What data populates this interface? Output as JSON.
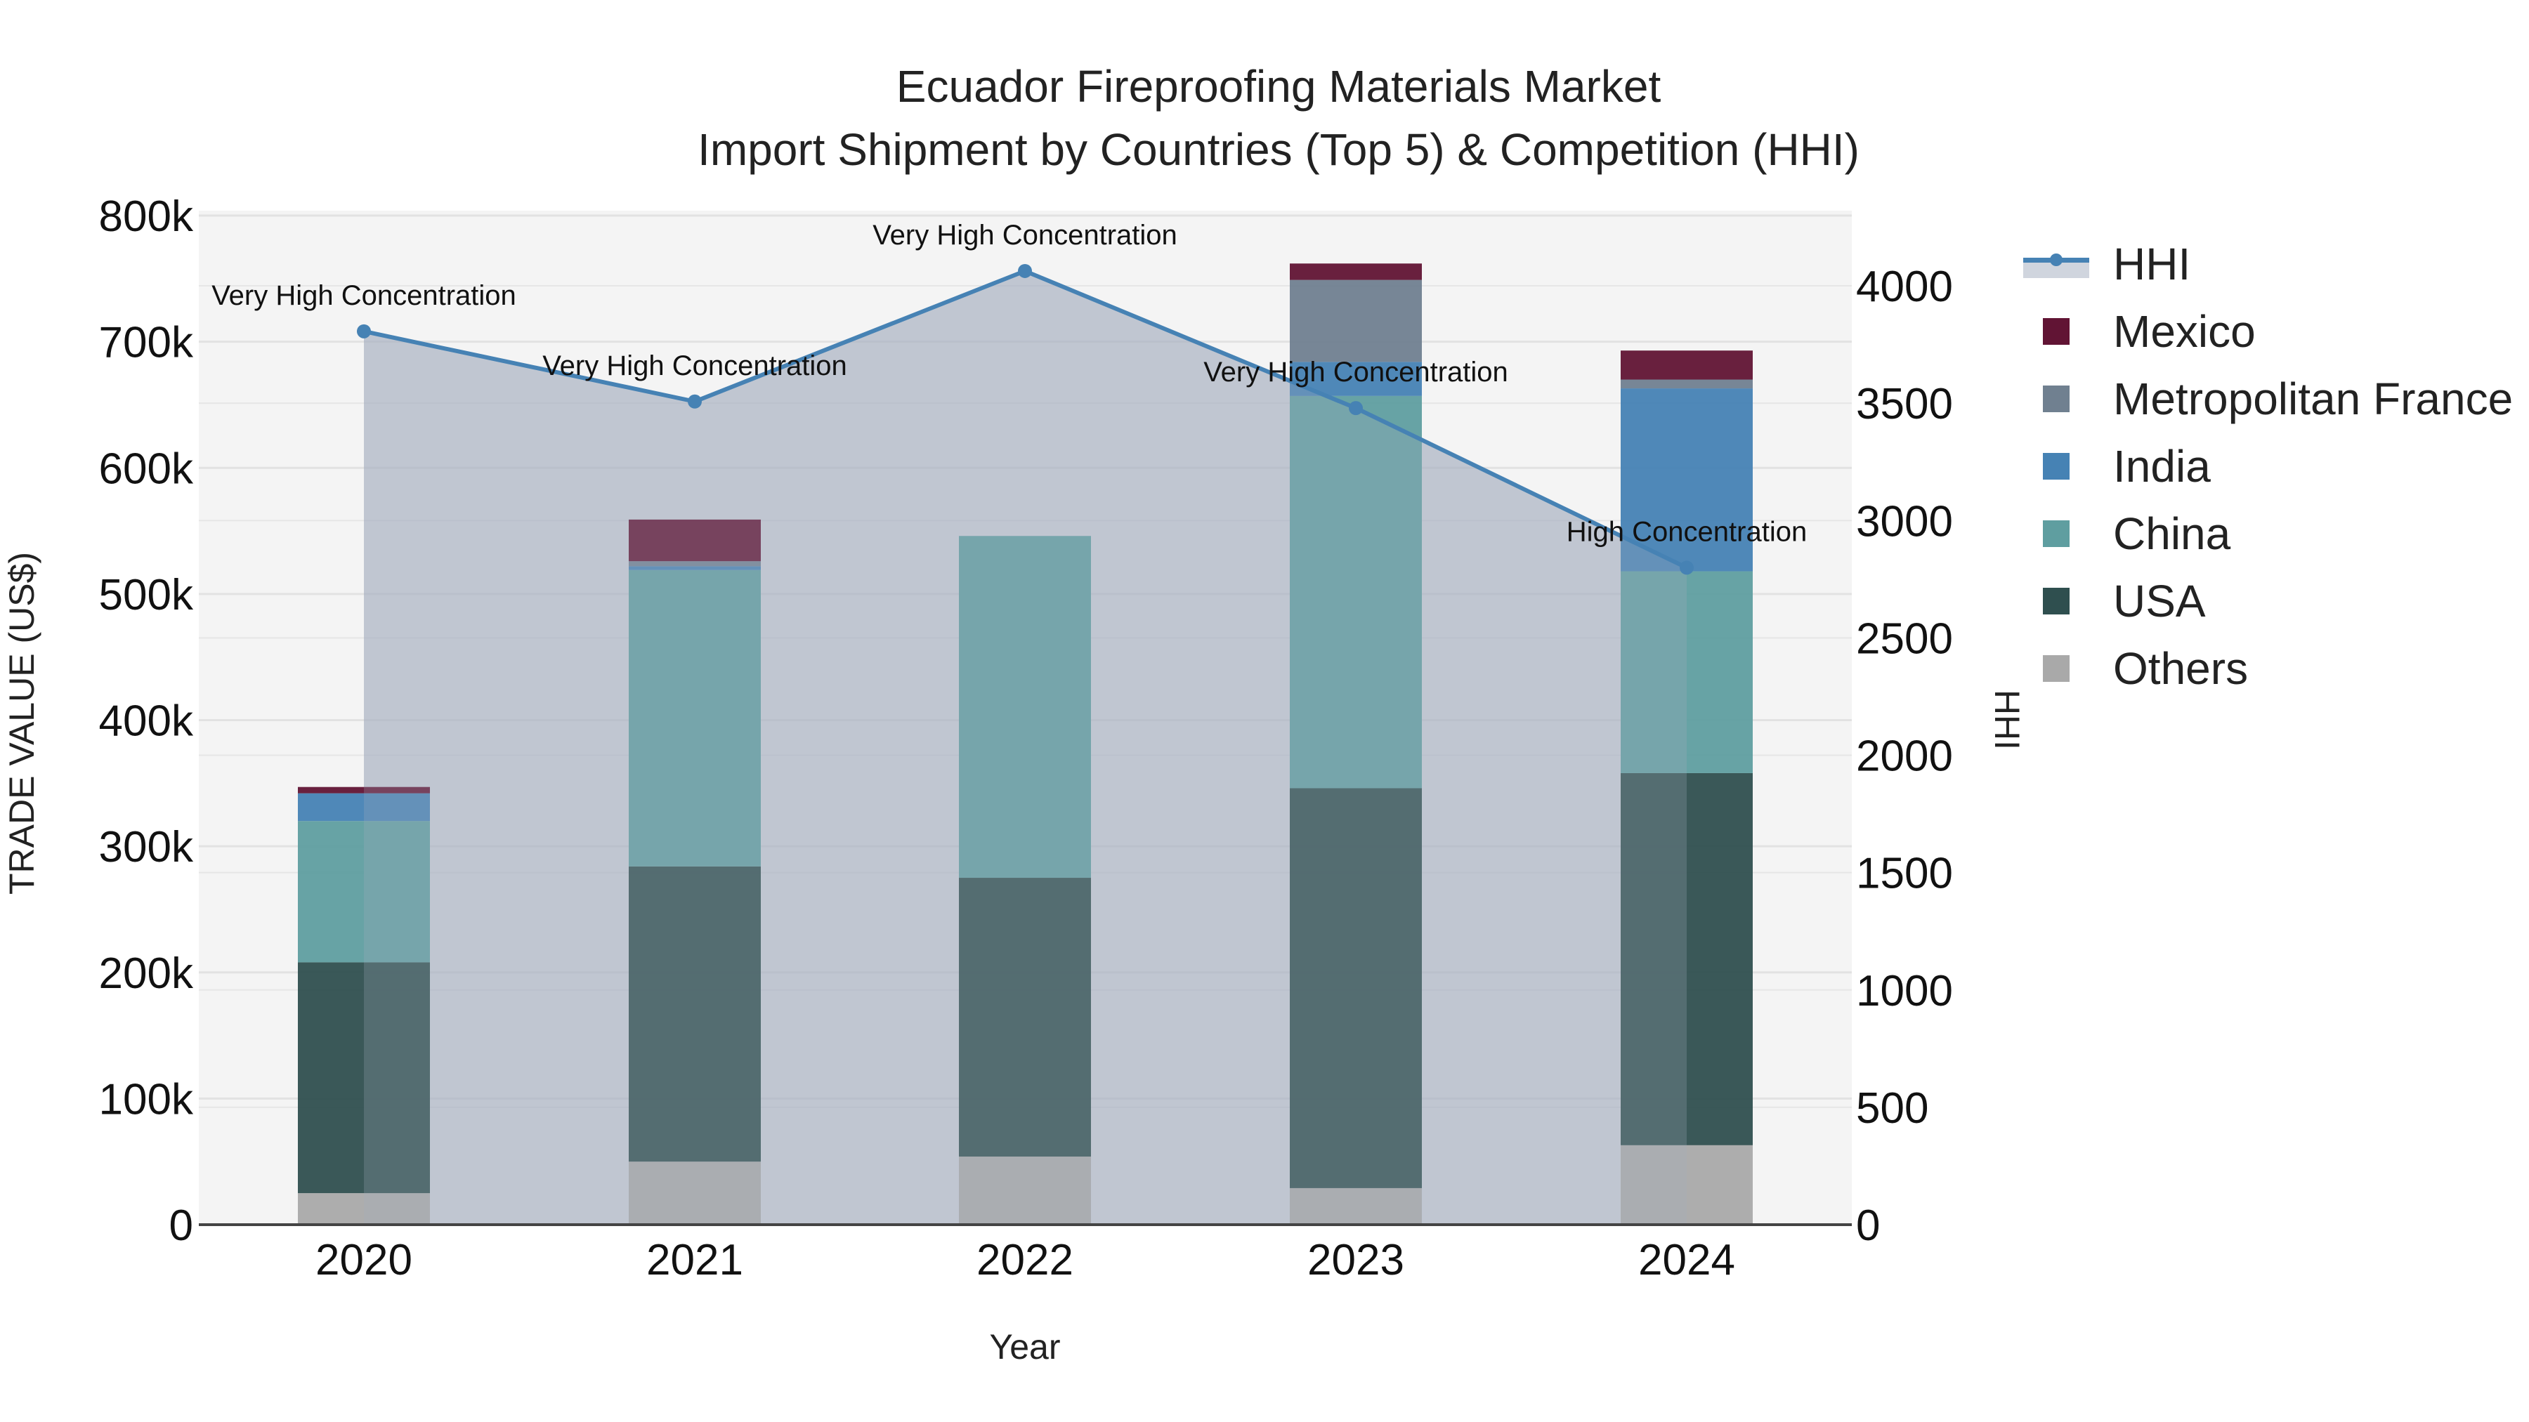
{
  "chart_data": {
    "type": "bar",
    "subtype": "stacked bar with secondary-axis area line",
    "title": "Ecuador Fireproofing Materials Market",
    "subtitle": "Import Shipment by Countries (Top 5) & Competition (HHI)",
    "xlabel": "Year",
    "ylabel": "TRADE VALUE (US$)",
    "y2label": "HHI",
    "categories": [
      "2020",
      "2021",
      "2022",
      "2023",
      "2024"
    ],
    "ylim": [
      0,
      800000
    ],
    "y_ticks": [
      0,
      100000,
      200000,
      300000,
      400000,
      500000,
      600000,
      700000,
      800000
    ],
    "y_tick_labels": [
      "0",
      "100k",
      "200k",
      "300k",
      "400k",
      "500k",
      "600k",
      "700k",
      "800k"
    ],
    "y2lim": [
      0,
      4300
    ],
    "y2_ticks": [
      0,
      500,
      1000,
      1500,
      2000,
      2500,
      3000,
      3500,
      4000
    ],
    "y2_tick_labels": [
      "0",
      "500",
      "1000",
      "1500",
      "2000",
      "2500",
      "3000",
      "3500",
      "4000"
    ],
    "grid": true,
    "legend_position": "right",
    "series": [
      {
        "name": "Others",
        "color": "#a9a9a9",
        "values": [
          25000,
          50000,
          54000,
          29000,
          63000
        ]
      },
      {
        "name": "USA",
        "color": "#2f4f4f",
        "values": [
          183000,
          234000,
          221000,
          317000,
          295000
        ]
      },
      {
        "name": "China",
        "color": "#5f9ea0",
        "values": [
          112000,
          235000,
          271000,
          311000,
          160000
        ]
      },
      {
        "name": "India",
        "color": "#4682b4",
        "values": [
          22000,
          3000,
          0,
          27000,
          145000
        ]
      },
      {
        "name": "Metropolitan France",
        "color": "#708090",
        "values": [
          0,
          4000,
          0,
          65000,
          7000
        ]
      },
      {
        "name": "Mexico",
        "color": "#611434",
        "values": [
          5000,
          33000,
          0,
          13000,
          23000
        ]
      }
    ],
    "line_series": {
      "name": "HHI",
      "axis": "y2",
      "color": "#4682b4",
      "fill": "rgba(162,172,190,0.55)",
      "values": [
        3806,
        3507,
        4063,
        3479,
        2799
      ],
      "annotations": [
        "Very High Concentration",
        "Very High Concentration",
        "Very High Concentration",
        "Very High Concentration",
        "High Concentration"
      ]
    }
  },
  "legend": {
    "items": [
      {
        "label": "HHI",
        "kind": "line",
        "color": "#4682b4"
      },
      {
        "label": "Mexico",
        "kind": "box",
        "color": "#611434"
      },
      {
        "label": "Metropolitan France",
        "kind": "box",
        "color": "#708090"
      },
      {
        "label": "India",
        "kind": "box",
        "color": "#4682b4"
      },
      {
        "label": "China",
        "kind": "box",
        "color": "#5f9ea0"
      },
      {
        "label": "USA",
        "kind": "box",
        "color": "#2f4f4f"
      },
      {
        "label": "Others",
        "kind": "box",
        "color": "#a9a9a9"
      }
    ]
  }
}
